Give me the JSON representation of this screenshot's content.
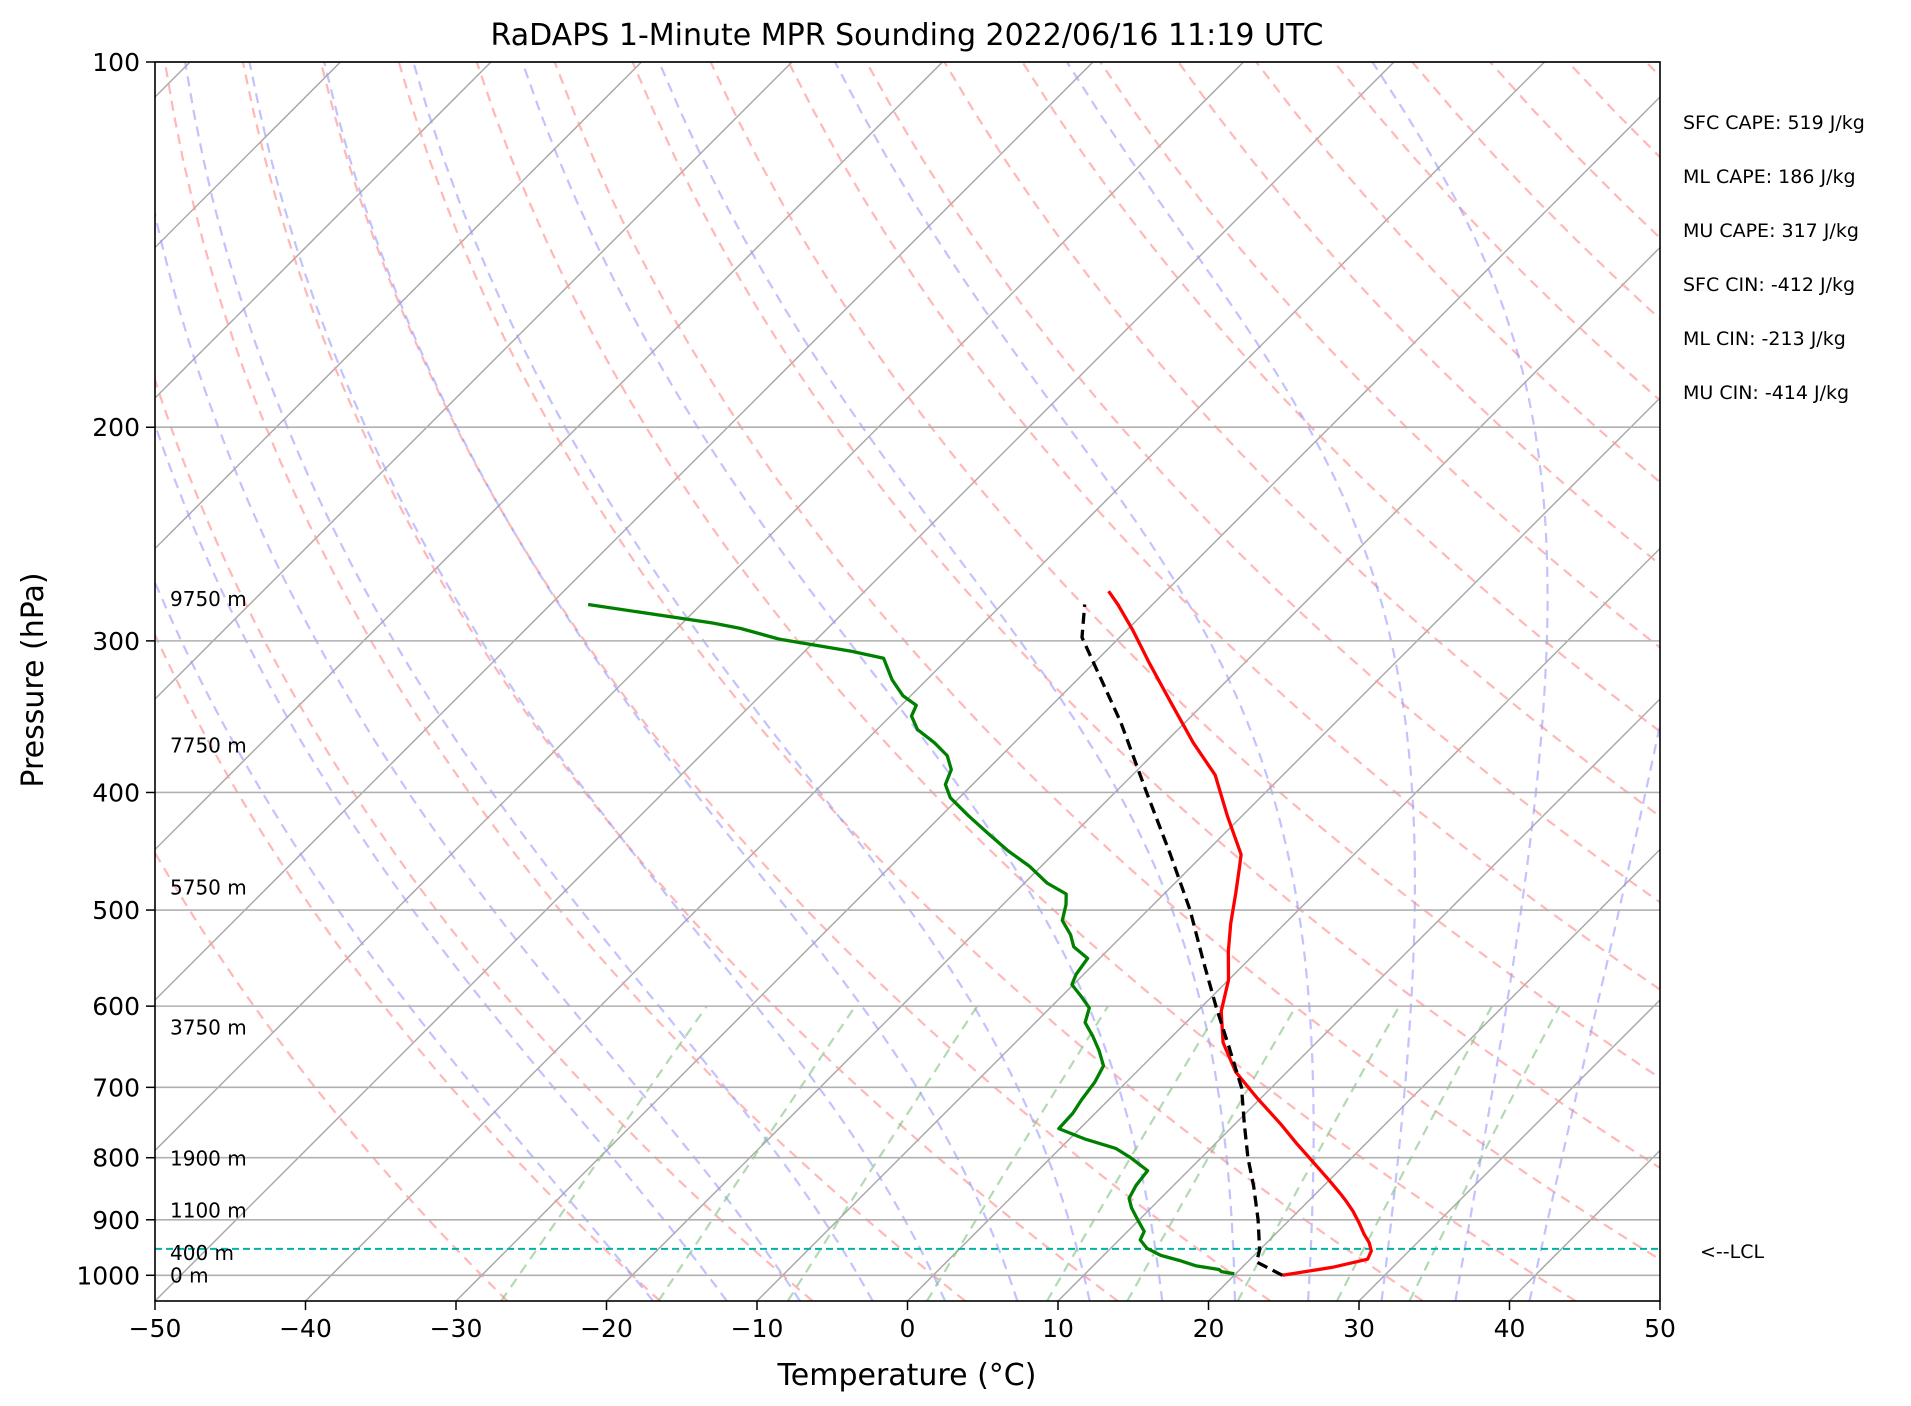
{
  "chart_data": {
    "type": "line",
    "title": "RaDAPS 1-Minute MPR Sounding 2022/06/16 11:19 UTC",
    "xlabel": "Temperature (°C)",
    "ylabel": "Pressure (hPa)",
    "xlim": [
      -50,
      50
    ],
    "ylim": [
      1050,
      100
    ],
    "y_scale": "log",
    "x_ticks": [
      -50,
      -40,
      -30,
      -20,
      -10,
      0,
      10,
      20,
      30,
      40,
      50
    ],
    "y_ticks": [
      100,
      200,
      300,
      400,
      500,
      600,
      700,
      800,
      900,
      1000
    ],
    "skew": true,
    "grid": true,
    "series": [
      {
        "id": "temperature",
        "color": "#ff0000",
        "points": [
          [
            23.2,
            1000
          ],
          [
            26.0,
            985
          ],
          [
            27.8,
            970
          ],
          [
            27.5,
            955
          ],
          [
            26.8,
            940
          ],
          [
            25.9,
            925
          ],
          [
            24.8,
            905
          ],
          [
            23.6,
            885
          ],
          [
            22.6,
            870
          ],
          [
            21.6,
            856
          ],
          [
            20.0,
            835
          ],
          [
            18.0,
            810
          ],
          [
            15.5,
            780
          ],
          [
            13.0,
            750
          ],
          [
            9.8,
            715
          ],
          [
            6.6,
            680
          ],
          [
            3.8,
            643
          ],
          [
            1.6,
            606
          ],
          [
            0.0,
            571
          ],
          [
            -1.9,
            541
          ],
          [
            -3.6,
            513
          ],
          [
            -5.3,
            484
          ],
          [
            -6.7,
            462
          ],
          [
            -7.5,
            450
          ],
          [
            -11.0,
            418
          ],
          [
            -14.5,
            387
          ],
          [
            -18.1,
            364
          ],
          [
            -22.3,
            337
          ],
          [
            -26.3,
            313
          ],
          [
            -29.6,
            294
          ],
          [
            -32.3,
            280
          ],
          [
            -33.8,
            273
          ]
        ]
      },
      {
        "id": "dewpoint",
        "color": "#008000",
        "points": [
          [
            19.9,
            997
          ],
          [
            18.9,
            993
          ],
          [
            18.6,
            989
          ],
          [
            16.8,
            982
          ],
          [
            15.5,
            973
          ],
          [
            13.8,
            963
          ],
          [
            12.4,
            950
          ],
          [
            11.4,
            935
          ],
          [
            11.1,
            920
          ],
          [
            9.9,
            900
          ],
          [
            8.7,
            880
          ],
          [
            7.9,
            864
          ],
          [
            7.5,
            843
          ],
          [
            7.3,
            820
          ],
          [
            5.3,
            800
          ],
          [
            3.7,
            786
          ],
          [
            1.0,
            772
          ],
          [
            -1.4,
            757
          ],
          [
            -1.5,
            735
          ],
          [
            -1.8,
            717
          ],
          [
            -2.1,
            693
          ],
          [
            -2.6,
            672
          ],
          [
            -3.9,
            653
          ],
          [
            -5.3,
            635
          ],
          [
            -6.7,
            619
          ],
          [
            -7.4,
            602
          ],
          [
            -8.7,
            589
          ],
          [
            -10.1,
            576
          ],
          [
            -10.5,
            565
          ],
          [
            -10.8,
            548
          ],
          [
            -12.5,
            536
          ],
          [
            -13.5,
            524
          ],
          [
            -15.0,
            510
          ],
          [
            -15.8,
            495
          ],
          [
            -16.5,
            485
          ],
          [
            -18.5,
            475
          ],
          [
            -20.8,
            460
          ],
          [
            -23.2,
            447
          ],
          [
            -25.6,
            433
          ],
          [
            -28.2,
            418
          ],
          [
            -30.6,
            404
          ],
          [
            -31.8,
            394
          ],
          [
            -32.4,
            383
          ],
          [
            -33.6,
            373
          ],
          [
            -35.3,
            364
          ],
          [
            -37.3,
            355
          ],
          [
            -38.6,
            346
          ],
          [
            -39.0,
            339
          ],
          [
            -40.5,
            333
          ],
          [
            -42.3,
            323
          ],
          [
            -44.3,
            310
          ],
          [
            -46.9,
            306
          ],
          [
            -52.5,
            299
          ],
          [
            -55.8,
            293
          ],
          [
            -58.0,
            290
          ],
          [
            -67.5,
            280
          ]
        ]
      },
      {
        "id": "parcel",
        "color": "#000000",
        "style": "dashed",
        "points": [
          [
            23.2,
            1000
          ],
          [
            20.6,
            975
          ],
          [
            20.0,
            953
          ],
          [
            17.9,
            900
          ],
          [
            15.4,
            845
          ],
          [
            13.1,
            800
          ],
          [
            10.6,
            750
          ],
          [
            8.0,
            700
          ],
          [
            4.6,
            650
          ],
          [
            0.9,
            600
          ],
          [
            -3.0,
            550
          ],
          [
            -7.2,
            500
          ],
          [
            -12.2,
            450
          ],
          [
            -17.9,
            400
          ],
          [
            -24.3,
            350
          ],
          [
            -32.5,
            298
          ],
          [
            -34.5,
            280
          ]
        ]
      }
    ],
    "annotations": [
      "SFC CAPE: 519 J/kg",
      "ML CAPE: 186 J/kg",
      "MU CAPE: 317 J/kg",
      "SFC CIN: -412 J/kg",
      "ML CIN: -213 J/kg",
      "MU CIN: -414 J/kg"
    ],
    "height_labels": [
      {
        "text": "9750 m",
        "p": 277
      },
      {
        "text": "7750 m",
        "p": 366
      },
      {
        "text": "5750 m",
        "p": 479
      },
      {
        "text": "3750 m",
        "p": 625
      },
      {
        "text": "1900 m",
        "p": 801
      },
      {
        "text": "1100 m",
        "p": 884
      },
      {
        "text": "400 m",
        "p": 959
      },
      {
        "text": "0 m",
        "p": 1000
      }
    ],
    "lcl": {
      "p": 951,
      "label": "<--LCL",
      "color": "#00b3a6"
    },
    "background_lines": {
      "isotherm_color": "#a9a9a9",
      "dry_adiabat_color": "#ff9999",
      "moist_adiabat_color": "#9999ff",
      "mixing_ratio_color": "#80c080"
    }
  }
}
